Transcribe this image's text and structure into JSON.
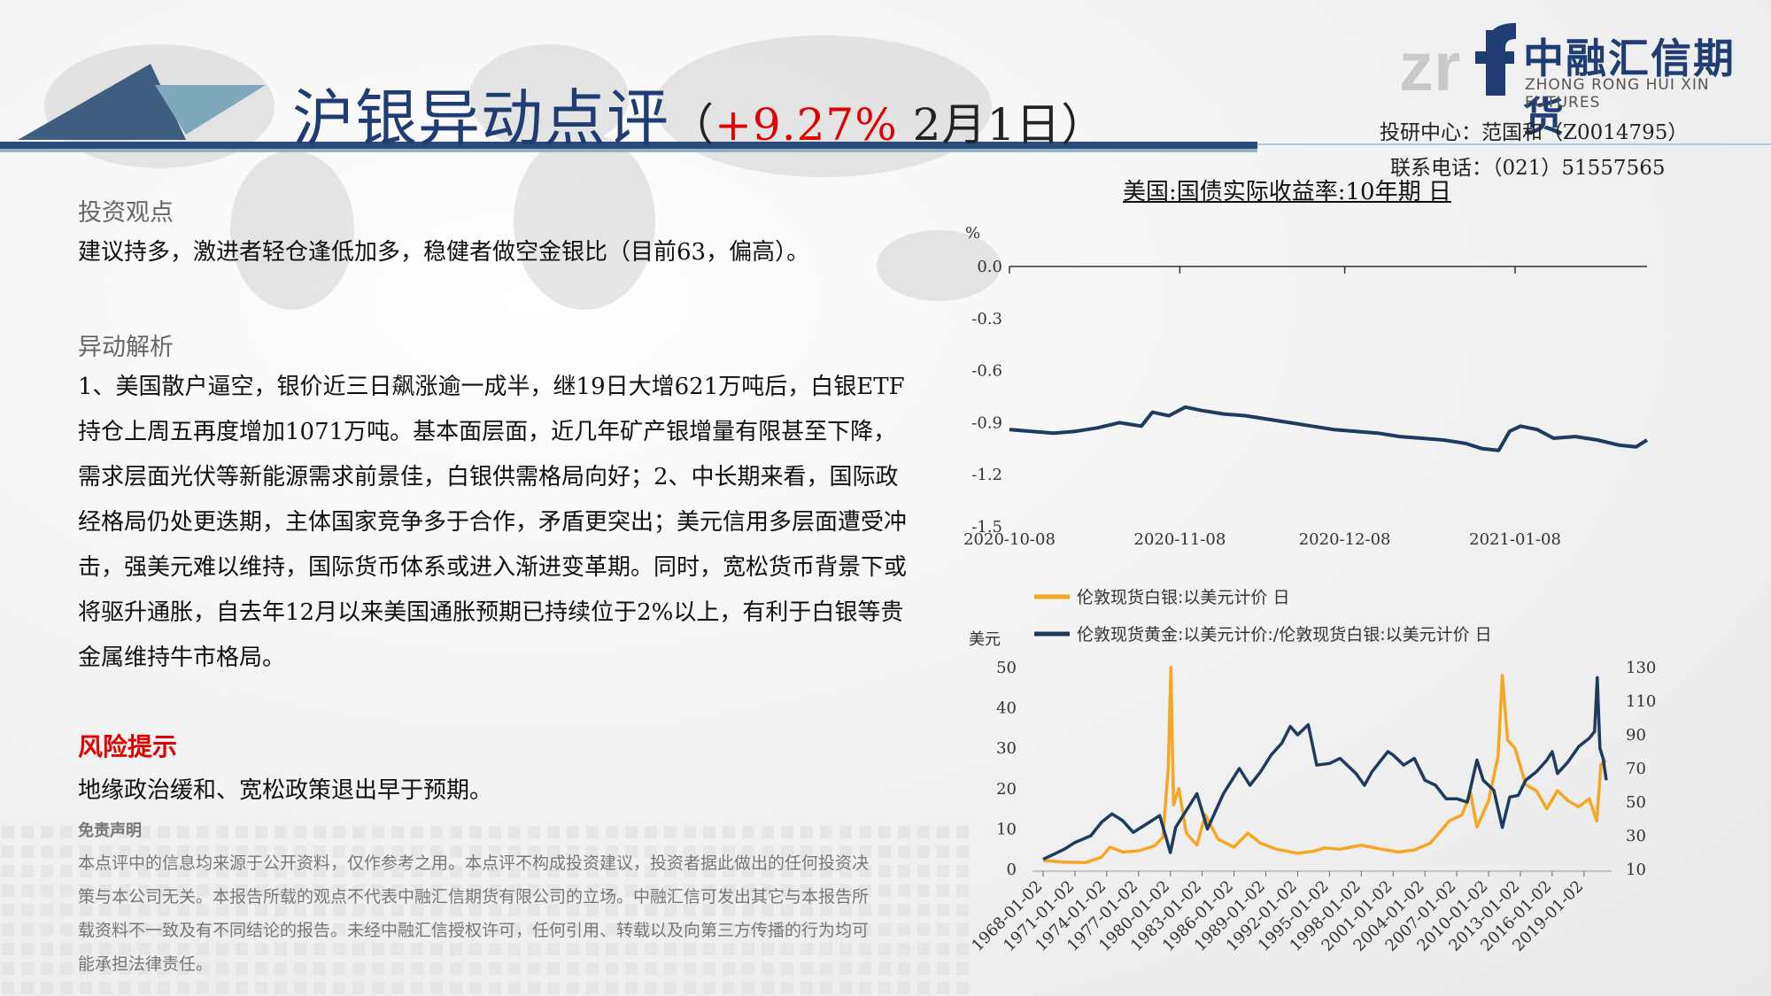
{
  "header": {
    "title": "沪银异动点评",
    "paren_open": "（",
    "pct": "+9.27%",
    "date": " 2月1日",
    "paren_close": "）",
    "logo_cn": "中融汇信期货",
    "logo_en": "ZHONG RONG HUI XIN FUTURES",
    "contact_line1": "投研中心：范国和（Z0014795）",
    "contact_line2": "联系电话：（021）51557565"
  },
  "body": {
    "view_heading": "投资观点",
    "view_text": "建议持多，激进者轻仓逢低加多，稳健者做空金银比（目前63，偏高）。",
    "analysis_heading": "异动解析",
    "analysis_text": "1、美国散户逼空，银价近三日飙涨逾一成半，继19日大增621万吨后，白银ETF持仓上周五再度增加1071万吨。基本面层面，近几年矿产银增量有限甚至下降，需求层面光伏等新能源需求前景佳，白银供需格局向好；2、中长期来看，国际政经格局仍处更迭期，主体国家竞争多于合作，矛盾更突出；美元信用多层面遭受冲击，强美元难以维持，国际货币体系或进入渐进变革期。同时，宽松货币背景下或将驱升通胀，自去年12月以来美国通胀预期已持续位于2%以上，有利于白银等贵金属维持牛市格局。",
    "risk_heading": "风险提示",
    "risk_text": "地缘政治缓和、宽松政策退出早于预期。",
    "disclaimer_heading": "免责声明",
    "disclaimer_text": "本点评中的信息均来源于公开资料，仅作参考之用。本点评不构成投资建议，投资者据此做出的任何投资决策与本公司无关。本报告所载的观点不代表中融汇信期货有限公司的立场。中融汇信可发出其它与本报告所载资料不一致及有不同结论的报告。未经中融汇信授权许可，任何引用、转载以及向第三方传播的行为均可能承担法律责任。"
  },
  "chart_data": [
    {
      "type": "line",
      "title": "美国:国债实际收益率:10年期 日",
      "ylabel": "%",
      "ylim": [
        -1.5,
        0.0
      ],
      "yticks": [
        "0.0",
        "-0.3",
        "-0.6",
        "-0.9",
        "-1.2",
        "-1.5"
      ],
      "xticks": [
        "2020-10-08",
        "2020-11-08",
        "2020-12-08",
        "2021-01-08"
      ],
      "x_range": [
        "2020-10-08",
        "2021-02-01"
      ],
      "grid": false,
      "series": [
        {
          "color": "#1f3a5f",
          "points": [
            [
              "2020-10-08",
              -0.94
            ],
            [
              "2020-10-12",
              -0.95
            ],
            [
              "2020-10-16",
              -0.96
            ],
            [
              "2020-10-20",
              -0.95
            ],
            [
              "2020-10-24",
              -0.93
            ],
            [
              "2020-10-28",
              -0.9
            ],
            [
              "2020-11-01",
              -0.92
            ],
            [
              "2020-11-03",
              -0.84
            ],
            [
              "2020-11-06",
              -0.86
            ],
            [
              "2020-11-09",
              -0.81
            ],
            [
              "2020-11-12",
              -0.83
            ],
            [
              "2020-11-16",
              -0.85
            ],
            [
              "2020-11-20",
              -0.86
            ],
            [
              "2020-11-24",
              -0.88
            ],
            [
              "2020-11-28",
              -0.9
            ],
            [
              "2020-12-02",
              -0.92
            ],
            [
              "2020-12-06",
              -0.94
            ],
            [
              "2020-12-10",
              -0.95
            ],
            [
              "2020-12-14",
              -0.96
            ],
            [
              "2020-12-18",
              -0.98
            ],
            [
              "2020-12-22",
              -0.99
            ],
            [
              "2020-12-26",
              -1.0
            ],
            [
              "2020-12-30",
              -1.02
            ],
            [
              "2021-01-02",
              -1.05
            ],
            [
              "2021-01-05",
              -1.06
            ],
            [
              "2021-01-07",
              -0.95
            ],
            [
              "2021-01-09",
              -0.92
            ],
            [
              "2021-01-12",
              -0.94
            ],
            [
              "2021-01-15",
              -0.99
            ],
            [
              "2021-01-19",
              -0.98
            ],
            [
              "2021-01-23",
              -1.0
            ],
            [
              "2021-01-27",
              -1.03
            ],
            [
              "2021-01-30",
              -1.04
            ],
            [
              "2021-02-01",
              -1.0
            ]
          ]
        }
      ]
    },
    {
      "type": "line",
      "ylabel": "美元",
      "ylim": [
        0,
        50
      ],
      "yticks": [
        "50",
        "40",
        "30",
        "20",
        "10",
        "0"
      ],
      "y2lim": [
        10,
        130
      ],
      "y2ticks": [
        "130",
        "110",
        "90",
        "70",
        "50",
        "30",
        "10"
      ],
      "xticks": [
        "1968-01-02",
        "1971-01-02",
        "1974-01-02",
        "1977-01-02",
        "1980-01-02",
        "1983-01-02",
        "1986-01-02",
        "1989-01-02",
        "1992-01-02",
        "1995-01-02",
        "1998-01-02",
        "2001-01-02",
        "2004-01-02",
        "2007-01-02",
        "2010-01-02",
        "2013-01-02",
        "2016-01-02",
        "2019-01-02"
      ],
      "legend_position": "top",
      "series": [
        {
          "name": "伦敦现货白银:以美元计价 日",
          "axis": "left",
          "color": "#f5a623",
          "points": [
            [
              1968.0,
              2.2
            ],
            [
              1970.0,
              1.8
            ],
            [
              1972.0,
              1.7
            ],
            [
              1973.5,
              3.0
            ],
            [
              1974.3,
              5.5
            ],
            [
              1975.5,
              4.3
            ],
            [
              1977.0,
              4.6
            ],
            [
              1978.5,
              5.8
            ],
            [
              1979.3,
              8.0
            ],
            [
              1979.8,
              25.0
            ],
            [
              1980.05,
              50.0
            ],
            [
              1980.3,
              16.0
            ],
            [
              1980.8,
              20.0
            ],
            [
              1981.5,
              9.0
            ],
            [
              1982.5,
              6.0
            ],
            [
              1983.3,
              13.5
            ],
            [
              1984.5,
              7.5
            ],
            [
              1986.0,
              5.5
            ],
            [
              1987.3,
              9.0
            ],
            [
              1988.5,
              6.5
            ],
            [
              1990.0,
              5.0
            ],
            [
              1992.0,
              4.0
            ],
            [
              1993.5,
              4.5
            ],
            [
              1994.5,
              5.3
            ],
            [
              1996.0,
              5.0
            ],
            [
              1998.0,
              6.0
            ],
            [
              1999.5,
              5.2
            ],
            [
              2001.5,
              4.3
            ],
            [
              2003.0,
              4.8
            ],
            [
              2004.5,
              6.5
            ],
            [
              2006.3,
              12.0
            ],
            [
              2007.5,
              13.5
            ],
            [
              2008.3,
              19.0
            ],
            [
              2008.9,
              10.5
            ],
            [
              2010.0,
              17.0
            ],
            [
              2010.9,
              28.0
            ],
            [
              2011.3,
              48.0
            ],
            [
              2011.8,
              32.0
            ],
            [
              2012.5,
              30.0
            ],
            [
              2013.5,
              21.0
            ],
            [
              2014.5,
              19.5
            ],
            [
              2015.5,
              15.0
            ],
            [
              2016.5,
              19.5
            ],
            [
              2017.5,
              17.0
            ],
            [
              2018.5,
              15.5
            ],
            [
              2019.5,
              17.5
            ],
            [
              2020.2,
              12.0
            ],
            [
              2020.6,
              26.0
            ],
            [
              2021.1,
              27.0
            ]
          ]
        },
        {
          "name": "伦敦现货黄金:以美元计价:/伦敦现货白银:以美元计价 日",
          "axis": "right",
          "color": "#1f3a5f",
          "points": [
            [
              1968.0,
              16
            ],
            [
              1969.0,
              19
            ],
            [
              1970.0,
              22
            ],
            [
              1971.0,
              26
            ],
            [
              1972.5,
              30
            ],
            [
              1973.5,
              38
            ],
            [
              1974.5,
              43
            ],
            [
              1975.5,
              39
            ],
            [
              1976.5,
              32
            ],
            [
              1977.5,
              36
            ],
            [
              1979.0,
              42
            ],
            [
              1980.0,
              20
            ],
            [
              1980.5,
              35
            ],
            [
              1981.5,
              45
            ],
            [
              1982.5,
              55
            ],
            [
              1983.5,
              34
            ],
            [
              1985.0,
              55
            ],
            [
              1986.5,
              70
            ],
            [
              1987.5,
              60
            ],
            [
              1988.5,
              68
            ],
            [
              1989.5,
              78
            ],
            [
              1990.5,
              85
            ],
            [
              1991.3,
              95
            ],
            [
              1992.0,
              90
            ],
            [
              1993.0,
              96
            ],
            [
              1993.8,
              72
            ],
            [
              1995.0,
              73
            ],
            [
              1996.0,
              76
            ],
            [
              1997.5,
              67
            ],
            [
              1998.3,
              60
            ],
            [
              1999.0,
              68
            ],
            [
              2000.5,
              80
            ],
            [
              2001.0,
              78
            ],
            [
              2002.0,
              72
            ],
            [
              2003.0,
              76
            ],
            [
              2004.0,
              63
            ],
            [
              2005.0,
              60
            ],
            [
              2006.0,
              52
            ],
            [
              2007.0,
              52
            ],
            [
              2008.0,
              50
            ],
            [
              2008.9,
              75
            ],
            [
              2009.5,
              63
            ],
            [
              2010.5,
              57
            ],
            [
              2011.3,
              35
            ],
            [
              2012.0,
              53
            ],
            [
              2012.8,
              54
            ],
            [
              2013.5,
              63
            ],
            [
              2014.5,
              68
            ],
            [
              2015.5,
              75
            ],
            [
              2016.0,
              80
            ],
            [
              2016.5,
              67
            ],
            [
              2017.5,
              74
            ],
            [
              2018.5,
              83
            ],
            [
              2019.5,
              88
            ],
            [
              2020.0,
              92
            ],
            [
              2020.25,
              124
            ],
            [
              2020.5,
              82
            ],
            [
              2020.8,
              76
            ],
            [
              2021.1,
              63
            ]
          ]
        }
      ]
    }
  ]
}
